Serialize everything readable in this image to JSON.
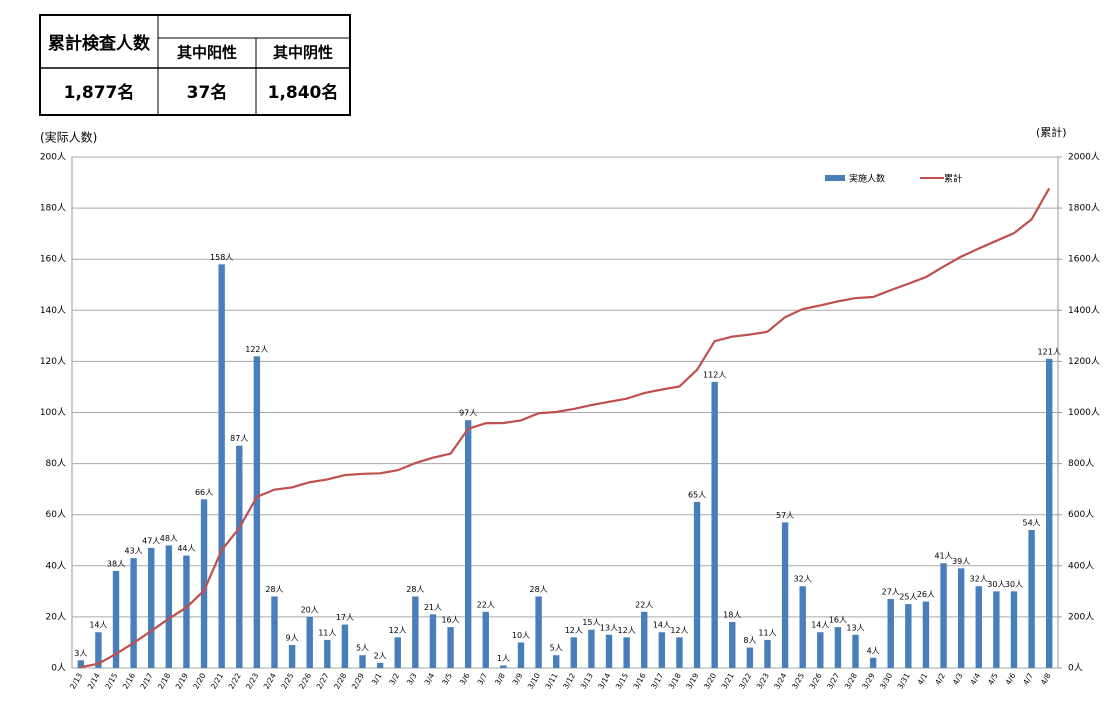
{
  "table": {
    "header": "累計検査人数",
    "columns": [
      "其中阳性",
      "其中阴性"
    ],
    "values": [
      "1,877名",
      "37名",
      "1,840名"
    ]
  },
  "chart_data": {
    "type": "bar_line",
    "y_label": "(実际人数)",
    "y2_label": "(累計)",
    "categories": [
      "2/13",
      "2/14",
      "2/15",
      "2/16",
      "2/17",
      "2/18",
      "2/19",
      "2/20",
      "2/21",
      "2/22",
      "2/23",
      "2/24",
      "2/25",
      "2/26",
      "2/27",
      "2/28",
      "2/29",
      "3/1",
      "3/2",
      "3/3",
      "3/4",
      "3/5",
      "3/6",
      "3/7",
      "3/8",
      "3/9",
      "3/10",
      "3/11",
      "3/12",
      "3/13",
      "3/14",
      "3/15",
      "3/16",
      "3/17",
      "3/18",
      "3/19",
      "3/20",
      "3/21",
      "3/22",
      "3/23",
      "3/24",
      "3/25",
      "3/26",
      "3/27",
      "3/28",
      "3/29",
      "3/30",
      "3/31",
      "4/1",
      "4/2",
      "4/3",
      "4/4",
      "4/5",
      "4/6",
      "4/7",
      "4/8"
    ],
    "series": [
      {
        "name": "実施人数",
        "color": "#4a7ebb",
        "kind": "bar",
        "values": [
          3,
          14,
          38,
          43,
          47,
          48,
          44,
          66,
          158,
          87,
          122,
          28,
          9,
          20,
          11,
          17,
          5,
          2,
          12,
          28,
          21,
          16,
          97,
          22,
          1,
          10,
          28,
          5,
          12,
          15,
          13,
          12,
          22,
          14,
          12,
          65,
          112,
          18,
          8,
          11,
          57,
          32,
          14,
          16,
          13,
          4,
          27,
          25,
          26,
          41,
          39,
          32,
          30,
          30,
          54,
          121
        ],
        "value_labels": [
          "3人",
          "14人",
          "38人",
          "43人",
          "47人",
          "48人",
          "44人",
          "66人",
          "158人",
          "87人",
          "122人",
          "28人",
          "9人",
          "20人",
          "11人",
          "17人",
          "5人",
          "2人",
          "12人",
          "28人",
          "21人",
          "16人",
          "97人",
          "22人",
          "1人",
          "10人",
          "28人",
          "5人",
          "12人",
          "15人",
          "13人",
          "12人",
          "22人",
          "14人",
          "12人",
          "65人",
          "112人",
          "18人",
          "8人",
          "11人",
          "57人",
          "32人",
          "14人",
          "16人",
          "13人",
          "4人",
          "27人",
          "25人",
          "26人",
          "41人",
          "39人",
          "32人",
          "30人",
          "30人",
          "54人",
          "121人"
        ]
      },
      {
        "name": "累計",
        "color": "#c0504d",
        "kind": "line",
        "axis": "y2",
        "values": [
          3,
          17,
          55,
          98,
          145,
          193,
          237,
          303,
          461,
          548,
          670,
          698,
          707,
          727,
          738,
          755,
          760,
          762,
          774,
          802,
          823,
          839,
          936,
          958,
          959,
          969,
          997,
          1002,
          1014,
          1029,
          1042,
          1054,
          1076,
          1090,
          1102,
          1167,
          1279,
          1297,
          1305,
          1316,
          1373,
          1405,
          1419,
          1435,
          1448,
          1452,
          1479,
          1504,
          1530,
          1571,
          1610,
          1642,
          1672,
          1702,
          1756,
          1877
        ]
      }
    ],
    "ylim": [
      0,
      200
    ],
    "yticks": [
      {
        "value": 0,
        "label": "0人"
      },
      {
        "value": 20,
        "label": "20人"
      },
      {
        "value": 40,
        "label": "40人"
      },
      {
        "value": 60,
        "label": "60人"
      },
      {
        "value": 80,
        "label": "80人"
      },
      {
        "value": 100,
        "label": "100人"
      },
      {
        "value": 120,
        "label": "120人"
      },
      {
        "value": 140,
        "label": "140人"
      },
      {
        "value": 160,
        "label": "160人"
      },
      {
        "value": 180,
        "label": "180人"
      },
      {
        "value": 200,
        "label": "200人"
      }
    ],
    "y2lim": [
      0,
      2000
    ],
    "y2ticks": [
      {
        "value": 0,
        "label": "0人"
      },
      {
        "value": 200,
        "label": "200人"
      },
      {
        "value": 400,
        "label": "400人"
      },
      {
        "value": 600,
        "label": "600人"
      },
      {
        "value": 800,
        "label": "800人"
      },
      {
        "value": 1000,
        "label": "1000人"
      },
      {
        "value": 1200,
        "label": "1200人"
      },
      {
        "value": 1400,
        "label": "1400人"
      },
      {
        "value": 1600,
        "label": "1600人"
      },
      {
        "value": 1800,
        "label": "1800人"
      },
      {
        "value": 2000,
        "label": "2000人"
      }
    ],
    "grid": true,
    "legend": "top-right"
  }
}
